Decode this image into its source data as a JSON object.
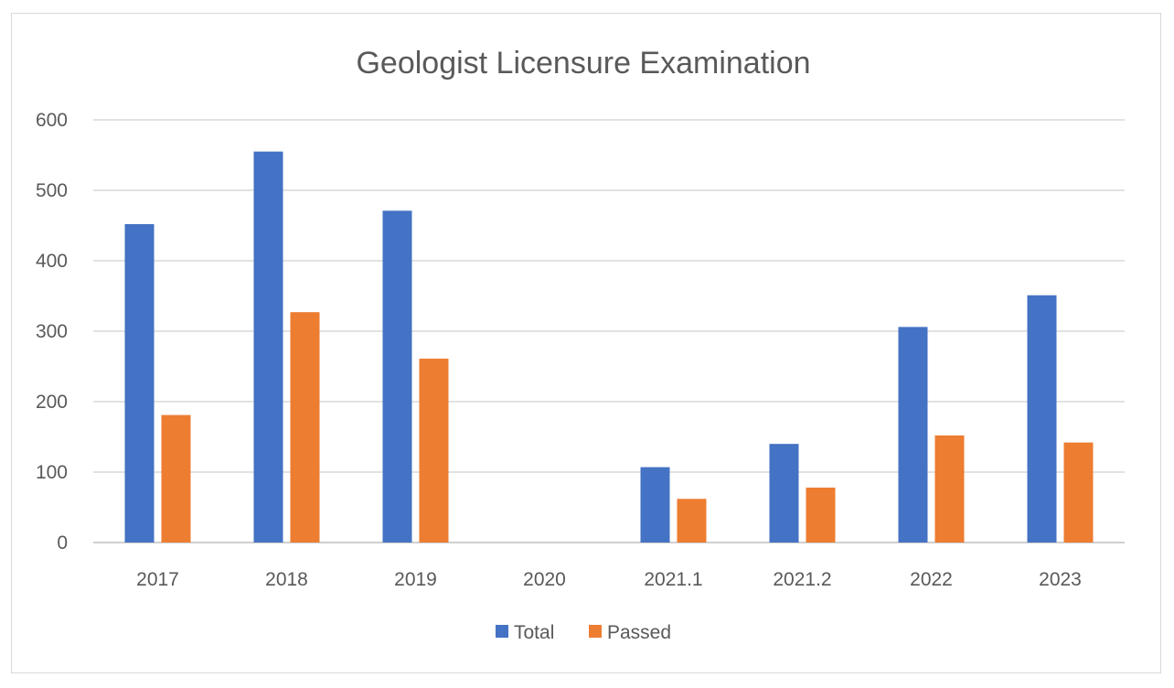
{
  "chart_data": {
    "type": "bar",
    "title": "Geologist Licensure Examination",
    "xlabel": "",
    "ylabel": "",
    "categories": [
      "2017",
      "2018",
      "2019",
      "2020",
      "2021.1",
      "2021.2",
      "2022",
      "2023"
    ],
    "series": [
      {
        "name": "Total",
        "color": "#4472c4",
        "values": [
          452,
          555,
          471,
          0,
          107,
          140,
          306,
          351
        ]
      },
      {
        "name": "Passed",
        "color": "#ed7d31",
        "values": [
          181,
          327,
          261,
          0,
          62,
          78,
          152,
          142
        ]
      }
    ],
    "ylim": [
      0,
      600
    ],
    "yticks": [
      "0",
      "100",
      "200",
      "300",
      "400",
      "500",
      "600"
    ],
    "grid": true,
    "legend": "bottom-center"
  }
}
